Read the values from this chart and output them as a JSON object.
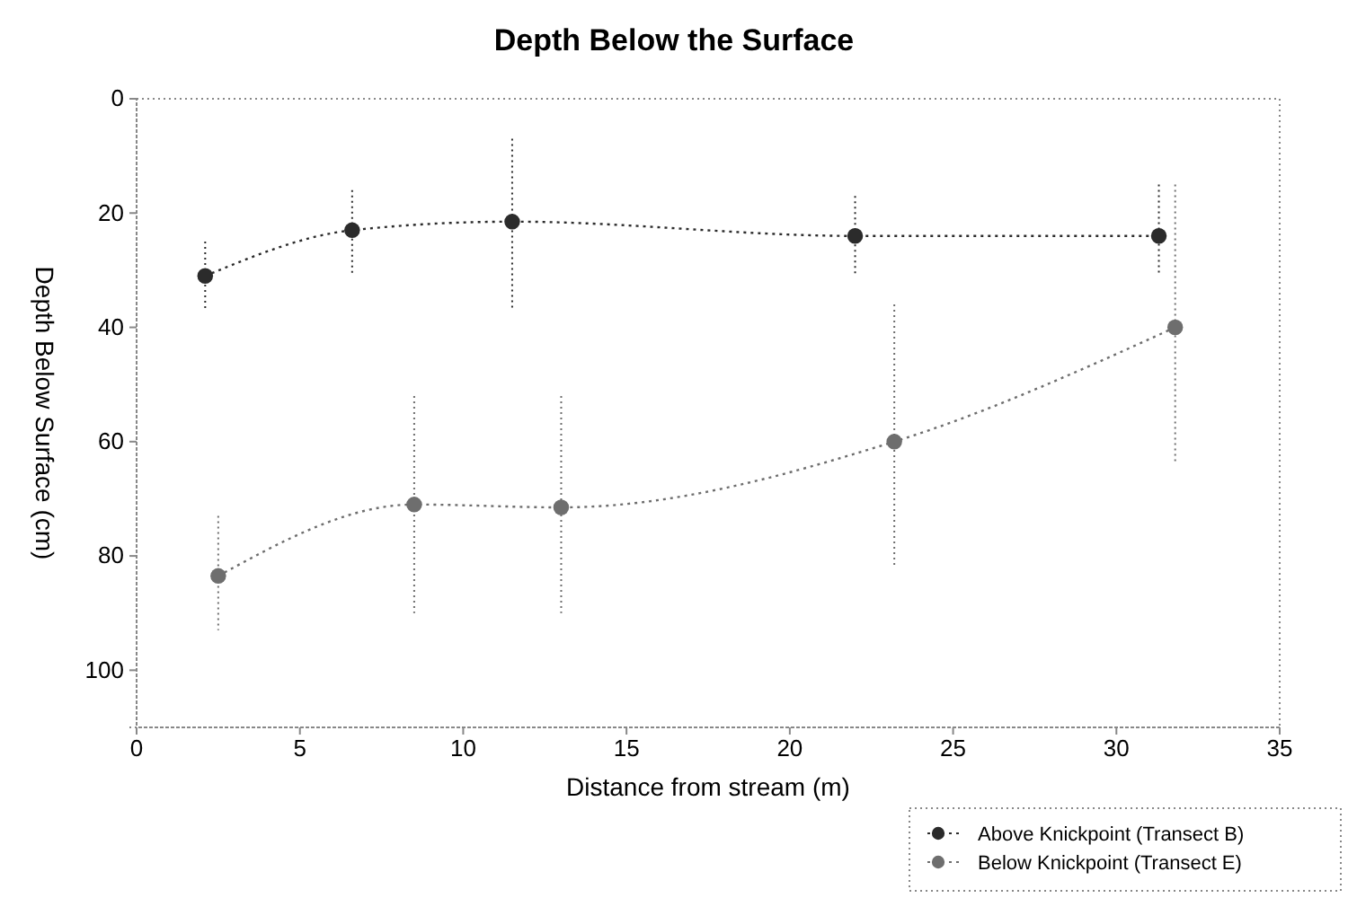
{
  "chart_data": {
    "type": "line",
    "title": "Depth Below the Surface",
    "xlabel": "Distance from stream (m)",
    "ylabel": "Depth Below Surface (cm)",
    "xlim": [
      0,
      35
    ],
    "xticks": [
      0,
      5,
      10,
      15,
      20,
      25,
      30,
      35
    ],
    "ylim": [
      110,
      0
    ],
    "yticks": [
      0,
      20,
      40,
      60,
      80,
      100
    ],
    "grid": false,
    "legend": "bottom right",
    "marker": "circle",
    "line_style": "dotted",
    "series": [
      {
        "name": "Above Knickpoint (Transect B)",
        "color": "#2b2b2b",
        "x": [
          2.1,
          6.6,
          11.5,
          22,
          31.3
        ],
        "values": [
          31,
          23,
          21.5,
          24,
          24
        ],
        "errors": [
          [
            25,
            37
          ],
          [
            16,
            31
          ],
          [
            7,
            37
          ],
          [
            17,
            31
          ],
          [
            15,
            31
          ]
        ]
      },
      {
        "name": "Below Knickpoint (Transect E)",
        "color": "#6e6e6e",
        "x": [
          2.5,
          8.5,
          13,
          23.2,
          31.8
        ],
        "values": [
          83.5,
          71,
          71.5,
          60,
          40
        ],
        "errors": [
          [
            73,
            93
          ],
          [
            52,
            90
          ],
          [
            52,
            90
          ],
          [
            36,
            82
          ],
          [
            15,
            64
          ]
        ]
      }
    ]
  }
}
